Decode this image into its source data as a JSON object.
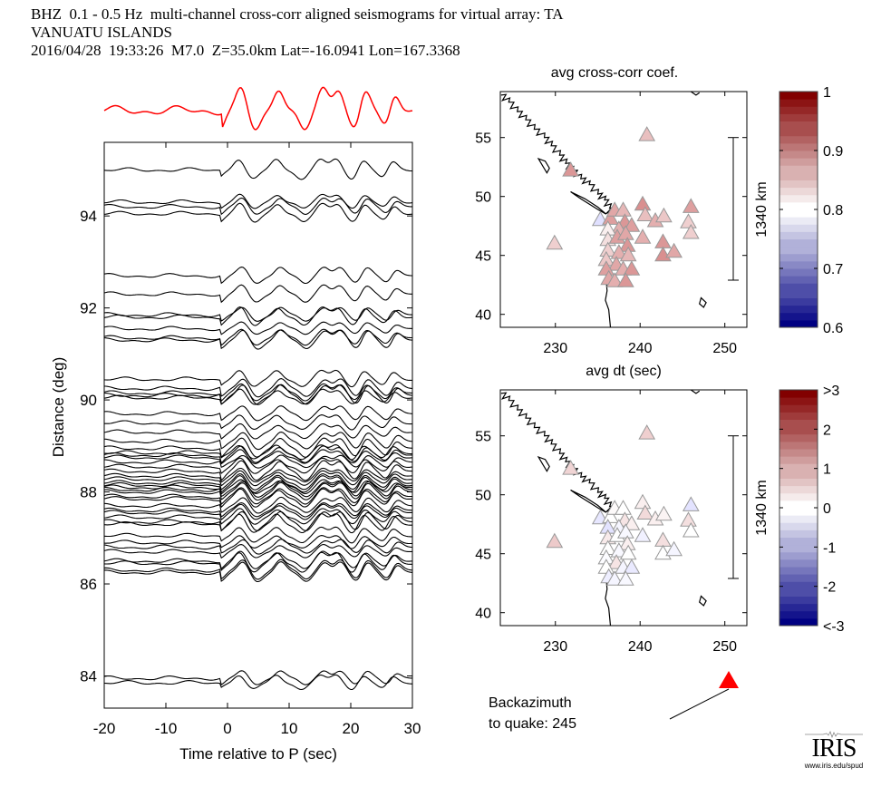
{
  "header": {
    "line1": "BHZ  0.1 - 0.5 Hz  multi-channel cross-corr aligned seismograms for virtual array: TA",
    "line2": "VANUATU ISLANDS",
    "line3": "2016/04/28  19:33:26  M7.0  Z=35.0km Lat=-16.0941 Lon=167.3368"
  },
  "backazimuth": {
    "label_line1": "Backazimuth",
    "label_line2": "to quake:  245",
    "value_deg": 245,
    "marker_color": "#ff0000"
  },
  "logo": {
    "name": "IRIS",
    "url_text": "www.iris.edu/spud"
  },
  "chart_data": [
    {
      "type": "line",
      "title": "",
      "xlabel": "Time relative to P (sec)",
      "ylabel": "Distance (deg)",
      "xlim": [
        -20,
        30
      ],
      "ylim": [
        83.3,
        95.6
      ],
      "xticks": [
        -20,
        -10,
        0,
        10,
        20,
        30
      ],
      "yticks": [
        84,
        86,
        88,
        90,
        92,
        94
      ],
      "grid": false,
      "stack_trace": {
        "name": "stacked beam",
        "color": "#ff0000",
        "description": "Red summed trace above panel, quiet until ~0 s, then oscillating peaks near 2, 8, 15, 18, 22 s"
      },
      "trace_color": "#000000",
      "trace_distances_deg": [
        95.0,
        94.3,
        94.2,
        94.05,
        92.7,
        92.3,
        91.85,
        91.8,
        91.55,
        91.35,
        91.3,
        90.45,
        90.25,
        90.15,
        90.1,
        90.05,
        89.7,
        89.5,
        89.3,
        89.1,
        88.95,
        88.85,
        88.8,
        88.75,
        88.65,
        88.55,
        88.45,
        88.35,
        88.28,
        88.2,
        88.15,
        88.1,
        88.05,
        88.0,
        87.9,
        87.85,
        87.7,
        87.6,
        87.55,
        87.45,
        87.35,
        87.3,
        87.05,
        86.9,
        86.8,
        86.7,
        86.5,
        86.45,
        86.3,
        86.25,
        83.95,
        83.85
      ],
      "waveform_shape": {
        "peaks_sec": [
          2.2,
          8.3,
          15.5,
          18.0,
          22.3,
          27.0
        ],
        "troughs_sec": [
          -1.5,
          4.5,
          12.5,
          20.7,
          25.8
        ],
        "pre_P_amplitude": "small",
        "post_P_amplitude": "large"
      }
    },
    {
      "type": "scatter",
      "title": "avg cross-corr coef.",
      "xlabel": "",
      "ylabel": "",
      "xlim": [
        223.5,
        252.6
      ],
      "ylim": [
        38.9,
        58.9
      ],
      "xticks": [
        230,
        240,
        250
      ],
      "yticks": [
        40,
        45,
        50,
        55
      ],
      "scale_bar_label": "1340 km",
      "colorbar": {
        "min": 0.6,
        "max": 1.0,
        "center": 0.8,
        "ticks": [
          "0.6",
          "0.7",
          "0.8",
          "0.9",
          "1"
        ],
        "colormap": "blue-white-red"
      },
      "marker": "triangle",
      "stations": [
        {
          "lon": 240.8,
          "lat": 55.2,
          "value": 0.88
        },
        {
          "lon": 231.8,
          "lat": 52.2,
          "value": 0.93
        },
        {
          "lon": 229.9,
          "lat": 46.0,
          "value": 0.86
        },
        {
          "lon": 235.3,
          "lat": 48.0,
          "value": 0.74
        },
        {
          "lon": 236.5,
          "lat": 48.1,
          "value": 0.92
        },
        {
          "lon": 237.0,
          "lat": 48.8,
          "value": 0.91
        },
        {
          "lon": 238.0,
          "lat": 48.8,
          "value": 0.89
        },
        {
          "lon": 238.2,
          "lat": 47.8,
          "value": 0.93
        },
        {
          "lon": 237.5,
          "lat": 47.2,
          "value": 0.9
        },
        {
          "lon": 239.0,
          "lat": 47.5,
          "value": 0.92
        },
        {
          "lon": 236.2,
          "lat": 47.2,
          "value": 0.82
        },
        {
          "lon": 236.2,
          "lat": 46.3,
          "value": 0.84
        },
        {
          "lon": 237.3,
          "lat": 46.5,
          "value": 0.92
        },
        {
          "lon": 238.3,
          "lat": 46.8,
          "value": 0.91
        },
        {
          "lon": 238.5,
          "lat": 45.8,
          "value": 0.93
        },
        {
          "lon": 236.2,
          "lat": 45.4,
          "value": 0.86
        },
        {
          "lon": 237.5,
          "lat": 45.2,
          "value": 0.9
        },
        {
          "lon": 238.6,
          "lat": 45.0,
          "value": 0.89
        },
        {
          "lon": 236.0,
          "lat": 44.6,
          "value": 0.87
        },
        {
          "lon": 237.2,
          "lat": 44.2,
          "value": 0.91
        },
        {
          "lon": 236.0,
          "lat": 43.8,
          "value": 0.92
        },
        {
          "lon": 238.0,
          "lat": 43.8,
          "value": 0.9
        },
        {
          "lon": 239.0,
          "lat": 43.8,
          "value": 0.93
        },
        {
          "lon": 236.3,
          "lat": 43.0,
          "value": 0.91
        },
        {
          "lon": 237.0,
          "lat": 42.8,
          "value": 0.9
        },
        {
          "lon": 238.3,
          "lat": 42.8,
          "value": 0.93
        },
        {
          "lon": 240.3,
          "lat": 49.3,
          "value": 0.94
        },
        {
          "lon": 240.6,
          "lat": 48.4,
          "value": 0.88
        },
        {
          "lon": 241.8,
          "lat": 47.9,
          "value": 0.9
        },
        {
          "lon": 242.8,
          "lat": 48.3,
          "value": 0.87
        },
        {
          "lon": 240.3,
          "lat": 46.5,
          "value": 0.9
        },
        {
          "lon": 242.7,
          "lat": 46.1,
          "value": 0.93
        },
        {
          "lon": 242.7,
          "lat": 45.0,
          "value": 0.94
        },
        {
          "lon": 244.0,
          "lat": 45.3,
          "value": 0.91
        },
        {
          "lon": 246.0,
          "lat": 49.1,
          "value": 0.92
        },
        {
          "lon": 245.7,
          "lat": 47.8,
          "value": 0.86
        },
        {
          "lon": 246.0,
          "lat": 46.9,
          "value": 0.86
        }
      ]
    },
    {
      "type": "scatter",
      "title": "avg dt (sec)",
      "xlabel": "",
      "ylabel": "",
      "xlim": [
        223.5,
        252.6
      ],
      "ylim": [
        38.9,
        58.9
      ],
      "xticks": [
        230,
        240,
        250
      ],
      "yticks": [
        40,
        45,
        50,
        55
      ],
      "scale_bar_label": "1340 km",
      "colorbar": {
        "min": -3,
        "max": 3,
        "center": 0,
        "ticks": [
          "<-3",
          "-2",
          "-1",
          "0",
          "1",
          "2",
          ">3"
        ],
        "colormap": "blue-white-red"
      },
      "marker": "triangle",
      "stations": [
        {
          "lon": 240.8,
          "lat": 55.2,
          "value": 0.9
        },
        {
          "lon": 231.8,
          "lat": 52.2,
          "value": 0.8
        },
        {
          "lon": 229.9,
          "lat": 46.0,
          "value": 1.0
        },
        {
          "lon": 235.3,
          "lat": 48.0,
          "value": -0.7
        },
        {
          "lon": 236.5,
          "lat": 48.1,
          "value": 0.0
        },
        {
          "lon": 237.0,
          "lat": 48.8,
          "value": 0.1
        },
        {
          "lon": 238.0,
          "lat": 48.8,
          "value": 0.0
        },
        {
          "lon": 238.2,
          "lat": 47.8,
          "value": 0.5
        },
        {
          "lon": 237.5,
          "lat": 47.2,
          "value": -0.3
        },
        {
          "lon": 239.0,
          "lat": 47.5,
          "value": 0.3
        },
        {
          "lon": 236.2,
          "lat": 47.2,
          "value": -0.8
        },
        {
          "lon": 236.2,
          "lat": 46.3,
          "value": 0.4
        },
        {
          "lon": 237.3,
          "lat": 46.5,
          "value": 0.0
        },
        {
          "lon": 238.3,
          "lat": 46.8,
          "value": -0.2
        },
        {
          "lon": 238.5,
          "lat": 45.8,
          "value": 0.3
        },
        {
          "lon": 236.2,
          "lat": 45.4,
          "value": 0.0
        },
        {
          "lon": 237.5,
          "lat": 45.2,
          "value": -0.2
        },
        {
          "lon": 238.6,
          "lat": 45.0,
          "value": 0.0
        },
        {
          "lon": 236.0,
          "lat": 44.6,
          "value": -0.1
        },
        {
          "lon": 237.2,
          "lat": 44.2,
          "value": 0.5
        },
        {
          "lon": 236.0,
          "lat": 43.8,
          "value": 0.0
        },
        {
          "lon": 238.0,
          "lat": 43.8,
          "value": -0.3
        },
        {
          "lon": 239.0,
          "lat": 43.8,
          "value": -0.6
        },
        {
          "lon": 236.3,
          "lat": 43.0,
          "value": -0.5
        },
        {
          "lon": 237.0,
          "lat": 42.8,
          "value": -0.3
        },
        {
          "lon": 238.3,
          "lat": 42.8,
          "value": -0.2
        },
        {
          "lon": 240.3,
          "lat": 49.3,
          "value": 0.3
        },
        {
          "lon": 240.6,
          "lat": 48.4,
          "value": 0.7
        },
        {
          "lon": 241.8,
          "lat": 47.9,
          "value": 0.3
        },
        {
          "lon": 242.8,
          "lat": 48.3,
          "value": 0.2
        },
        {
          "lon": 240.3,
          "lat": 46.5,
          "value": -0.4
        },
        {
          "lon": 242.7,
          "lat": 46.1,
          "value": 0.6
        },
        {
          "lon": 242.7,
          "lat": 45.0,
          "value": 0.0
        },
        {
          "lon": 244.0,
          "lat": 45.3,
          "value": -0.3
        },
        {
          "lon": 246.0,
          "lat": 49.1,
          "value": -0.8
        },
        {
          "lon": 245.7,
          "lat": 47.8,
          "value": 0.6
        },
        {
          "lon": 246.0,
          "lat": 46.9,
          "value": 0.0
        }
      ]
    }
  ]
}
